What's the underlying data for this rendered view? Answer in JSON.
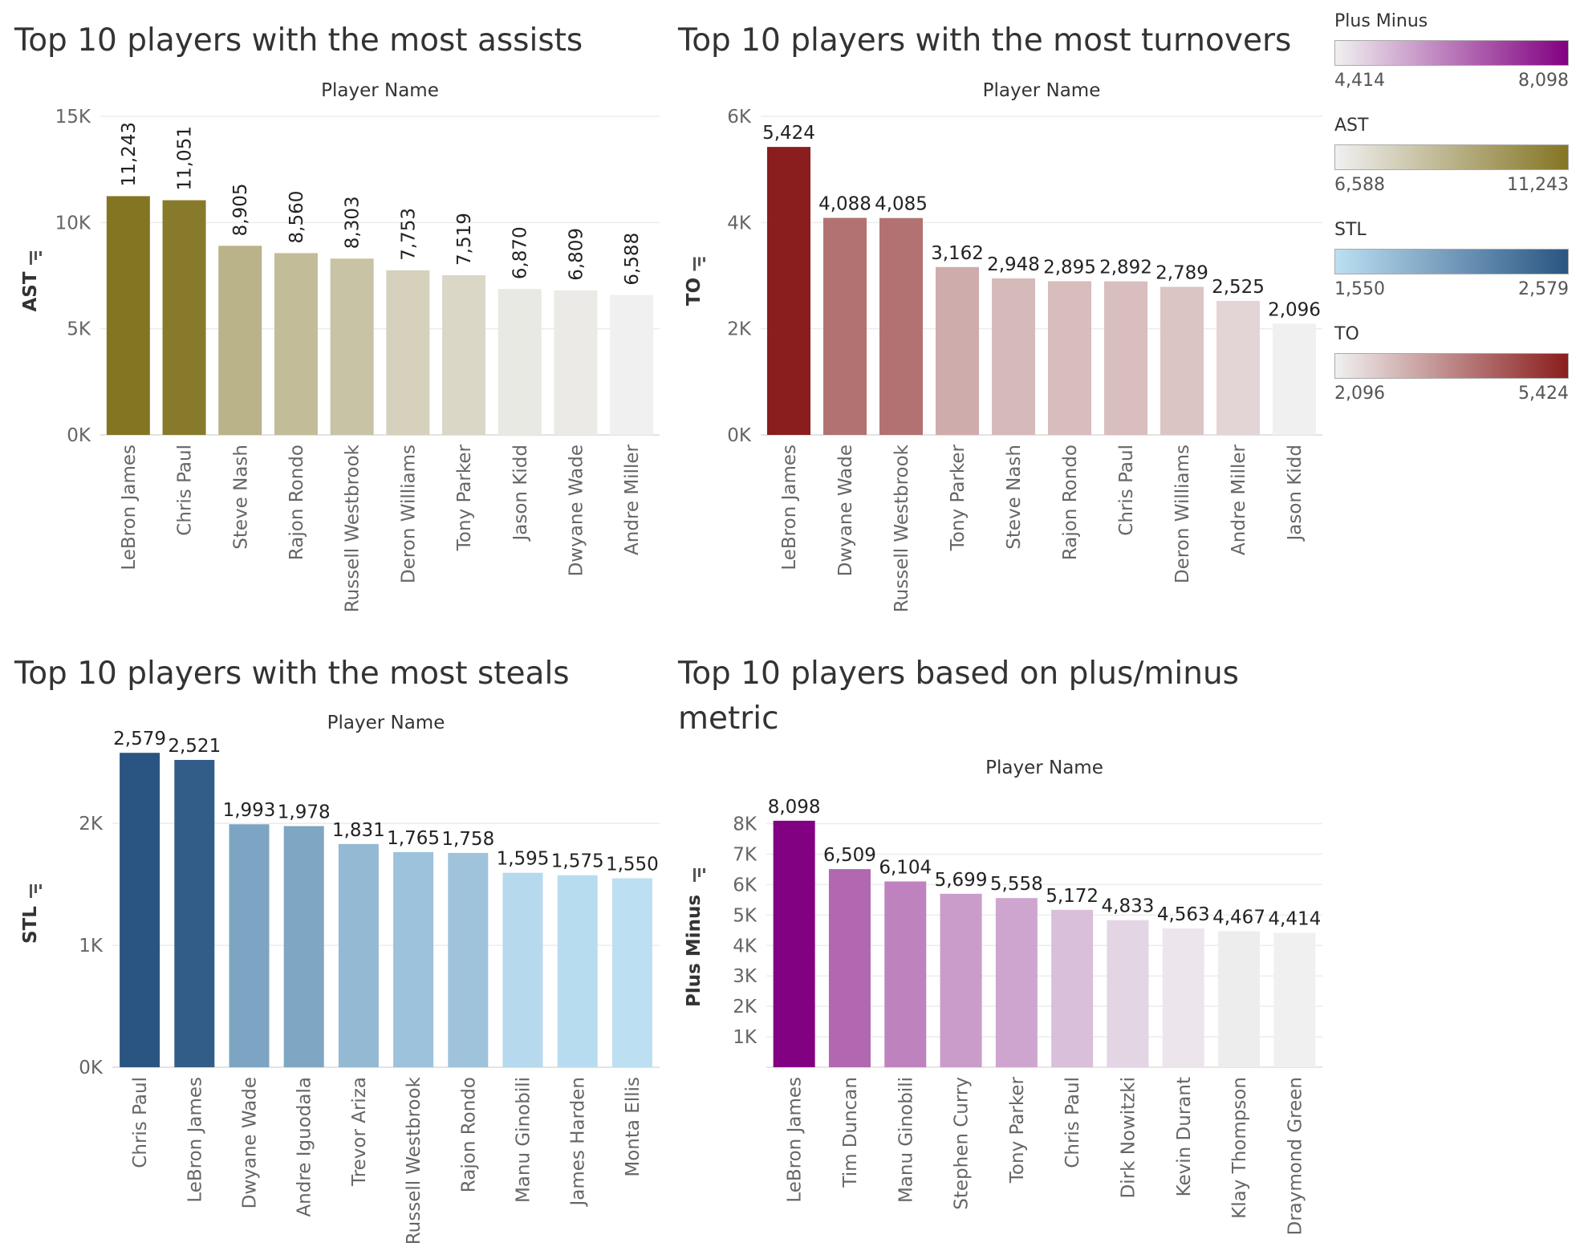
{
  "chart_data": [
    {
      "type": "bar",
      "title": "Top 10 players with the most assists",
      "xlabel": "Player Name",
      "ylabel": "AST",
      "categories": [
        "LeBron James",
        "Chris Paul",
        "Steve Nash",
        "Rajon Rondo",
        "Russell Westbrook",
        "Deron Williams",
        "Tony Parker",
        "Jason Kidd",
        "Dwyane Wade",
        "Andre Miller"
      ],
      "values": [
        11243,
        11051,
        8905,
        8560,
        8303,
        7753,
        7519,
        6870,
        6809,
        6588
      ],
      "value_labels": [
        "11,243",
        "11,051",
        "8,905",
        "8,560",
        "8,303",
        "7,753",
        "7,519",
        "6,870",
        "6,809",
        "6,588"
      ],
      "yticks": [
        0,
        5000,
        10000,
        15000
      ],
      "ytick_labels": [
        "0K",
        "5K",
        "10K",
        "15K"
      ],
      "ylim": [
        0,
        15000
      ],
      "color_min": "#f0f0f0",
      "color_max": "#847523",
      "grid": true,
      "label_rotation": "vertical"
    },
    {
      "type": "bar",
      "title": "Top 10 players with the most turnovers",
      "xlabel": "Player Name",
      "ylabel": "TO",
      "categories": [
        "LeBron James",
        "Dwyane Wade",
        "Russell Westbrook",
        "Tony Parker",
        "Steve Nash",
        "Rajon Rondo",
        "Chris Paul",
        "Deron Williams",
        "Andre Miller",
        "Jason Kidd"
      ],
      "values": [
        5424,
        4088,
        4085,
        3162,
        2948,
        2895,
        2892,
        2789,
        2525,
        2096
      ],
      "value_labels": [
        "5,424",
        "4,088",
        "4,085",
        "3,162",
        "2,948",
        "2,895",
        "2,892",
        "2,789",
        "2,525",
        "2,096"
      ],
      "yticks": [
        0,
        2000,
        4000,
        6000
      ],
      "ytick_labels": [
        "0K",
        "2K",
        "4K",
        "6K"
      ],
      "ylim": [
        0,
        6000
      ],
      "color_min": "#f0f0f0",
      "color_max": "#8a1d1d",
      "grid": true,
      "label_rotation": "horizontal"
    },
    {
      "type": "bar",
      "title": "Top 10 players with the most steals",
      "xlabel": "Player Name",
      "ylabel": "STL",
      "categories": [
        "Chris Paul",
        "LeBron James",
        "Dwyane Wade",
        "Andre Iguodala",
        "Trevor Ariza",
        "Russell Westbrook",
        "Rajon Rondo",
        "Manu Ginobili",
        "James Harden",
        "Monta Ellis"
      ],
      "values": [
        2579,
        2521,
        1993,
        1978,
        1831,
        1765,
        1758,
        1595,
        1575,
        1550
      ],
      "value_labels": [
        "2,579",
        "2,521",
        "1,993",
        "1,978",
        "1,831",
        "1,765",
        "1,758",
        "1,595",
        "1,575",
        "1,550"
      ],
      "yticks": [
        0,
        1000,
        2000
      ],
      "ytick_labels": [
        "0K",
        "1K",
        "2K"
      ],
      "ylim": [
        0,
        2600
      ],
      "color_min": "#bcdff2",
      "color_max": "#2a5582",
      "grid": true,
      "label_rotation": "horizontal"
    },
    {
      "type": "bar",
      "title": "Top 10 players based on plus/minus metric",
      "title_lines": [
        "Top 10 players based on plus/minus",
        "metric"
      ],
      "xlabel": "Player Name",
      "ylabel": "Plus Minus",
      "categories": [
        "LeBron James",
        "Tim Duncan",
        "Manu Ginobili",
        "Stephen Curry",
        "Tony Parker",
        "Chris Paul",
        "Dirk Nowitzki",
        "Kevin Durant",
        "Klay Thompson",
        "Draymond Green"
      ],
      "values": [
        8098,
        6509,
        6104,
        5699,
        5558,
        5172,
        4833,
        4563,
        4467,
        4414
      ],
      "value_labels": [
        "8,098",
        "6,509",
        "6,104",
        "5,699",
        "5,558",
        "5,172",
        "4,833",
        "4,563",
        "4,467",
        "4,414"
      ],
      "yticks": [
        1000,
        2000,
        3000,
        4000,
        5000,
        6000,
        7000,
        8000
      ],
      "ytick_labels": [
        "1K",
        "2K",
        "3K",
        "4K",
        "5K",
        "6K",
        "7K",
        "8K"
      ],
      "ylim": [
        0,
        8700
      ],
      "color_min": "#f0f0f0",
      "color_max": "#820082",
      "grid": true,
      "label_rotation": "horizontal"
    }
  ],
  "legends": [
    {
      "title": "Plus Minus",
      "min": "4,414",
      "max": "8,098",
      "color_min": "#f0f0f0",
      "color_max": "#820082"
    },
    {
      "title": "AST",
      "min": "6,588",
      "max": "11,243",
      "color_min": "#f0f0f0",
      "color_max": "#847523"
    },
    {
      "title": "STL",
      "min": "1,550",
      "max": "2,579",
      "color_min": "#bcdff2",
      "color_max": "#2a5582"
    },
    {
      "title": "TO",
      "min": "2,096",
      "max": "5,424",
      "color_min": "#f0f0f0",
      "color_max": "#8a1d1d"
    }
  ]
}
